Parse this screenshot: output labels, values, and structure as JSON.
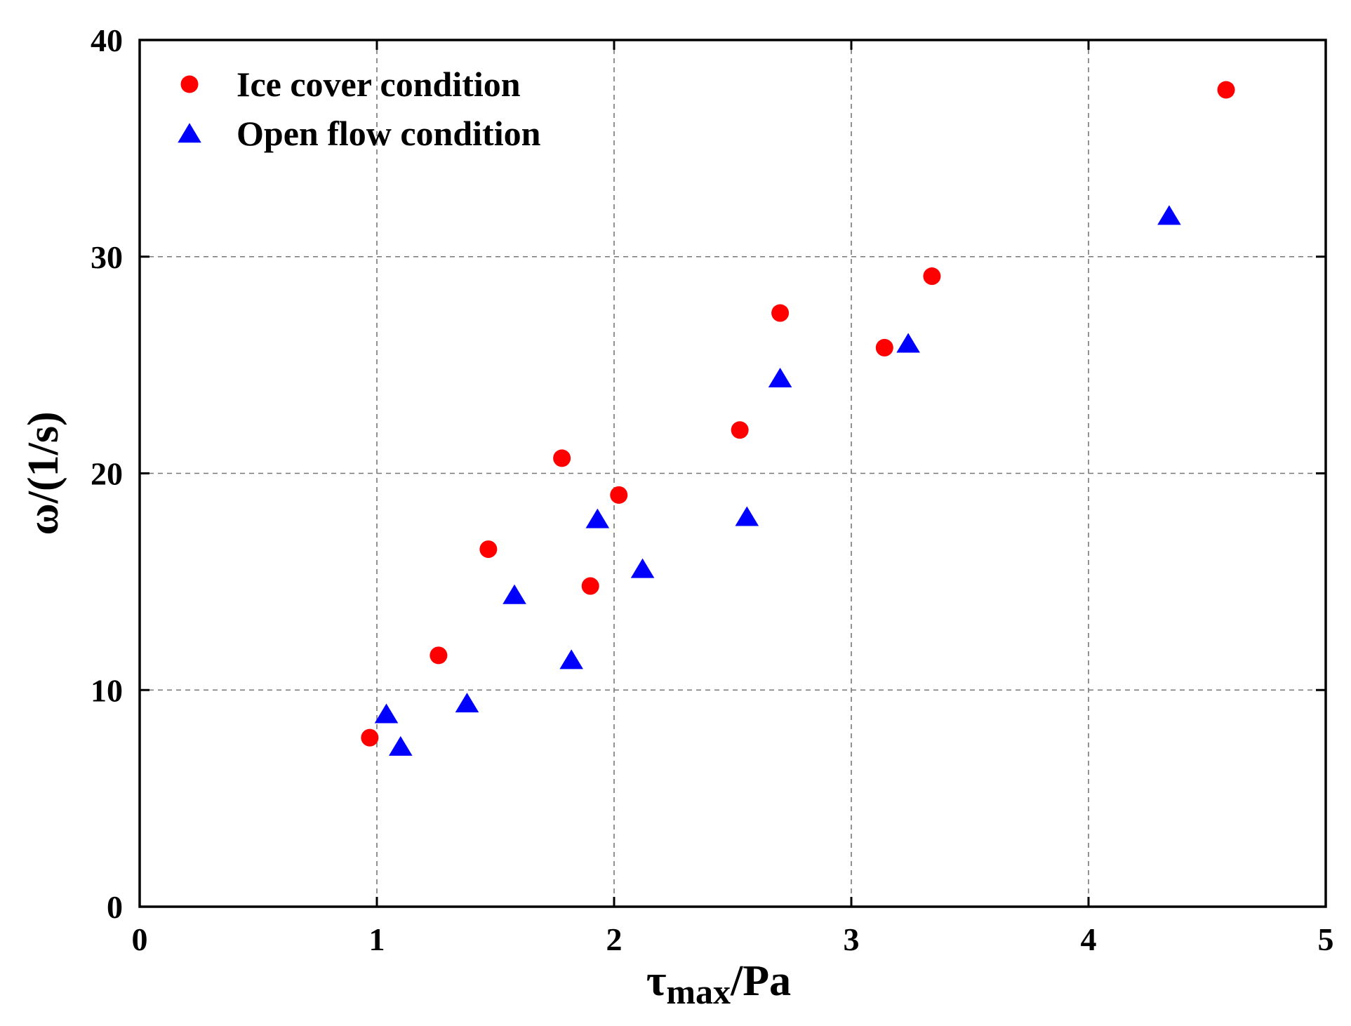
{
  "chart_data": {
    "type": "scatter",
    "title": "",
    "xlabel": "τ",
    "xlabel_subscript": "max",
    "xlabel_suffix": "/Pa",
    "ylabel": "ω/(1/s)",
    "xlim": [
      0,
      5
    ],
    "ylim": [
      0,
      40
    ],
    "xticks": [
      0,
      1,
      2,
      3,
      4,
      5
    ],
    "yticks": [
      0,
      10,
      20,
      30,
      40
    ],
    "xtick_labels": [
      "0",
      "1",
      "2",
      "3",
      "4",
      "5"
    ],
    "ytick_labels": [
      "0",
      "10",
      "20",
      "30",
      "40"
    ],
    "grid": true,
    "legend_position": "top-left",
    "series": [
      {
        "name": "Ice cover condition",
        "marker": "circle",
        "color": "#ff0000",
        "points": [
          [
            0.97,
            7.8
          ],
          [
            1.26,
            11.6
          ],
          [
            1.47,
            16.5
          ],
          [
            1.78,
            20.7
          ],
          [
            1.9,
            14.8
          ],
          [
            2.02,
            19.0
          ],
          [
            2.53,
            22.0
          ],
          [
            2.7,
            27.4
          ],
          [
            3.14,
            25.8
          ],
          [
            3.34,
            29.1
          ],
          [
            4.58,
            37.7
          ]
        ]
      },
      {
        "name": "Open flow condition",
        "marker": "triangle",
        "color": "#0000ff",
        "points": [
          [
            1.04,
            8.9
          ],
          [
            1.1,
            7.4
          ],
          [
            1.38,
            9.4
          ],
          [
            1.58,
            14.4
          ],
          [
            1.82,
            11.4
          ],
          [
            1.93,
            17.9
          ],
          [
            2.12,
            15.6
          ],
          [
            2.56,
            18.0
          ],
          [
            2.7,
            24.4
          ],
          [
            3.24,
            26.0
          ],
          [
            4.34,
            31.9
          ]
        ]
      }
    ]
  }
}
